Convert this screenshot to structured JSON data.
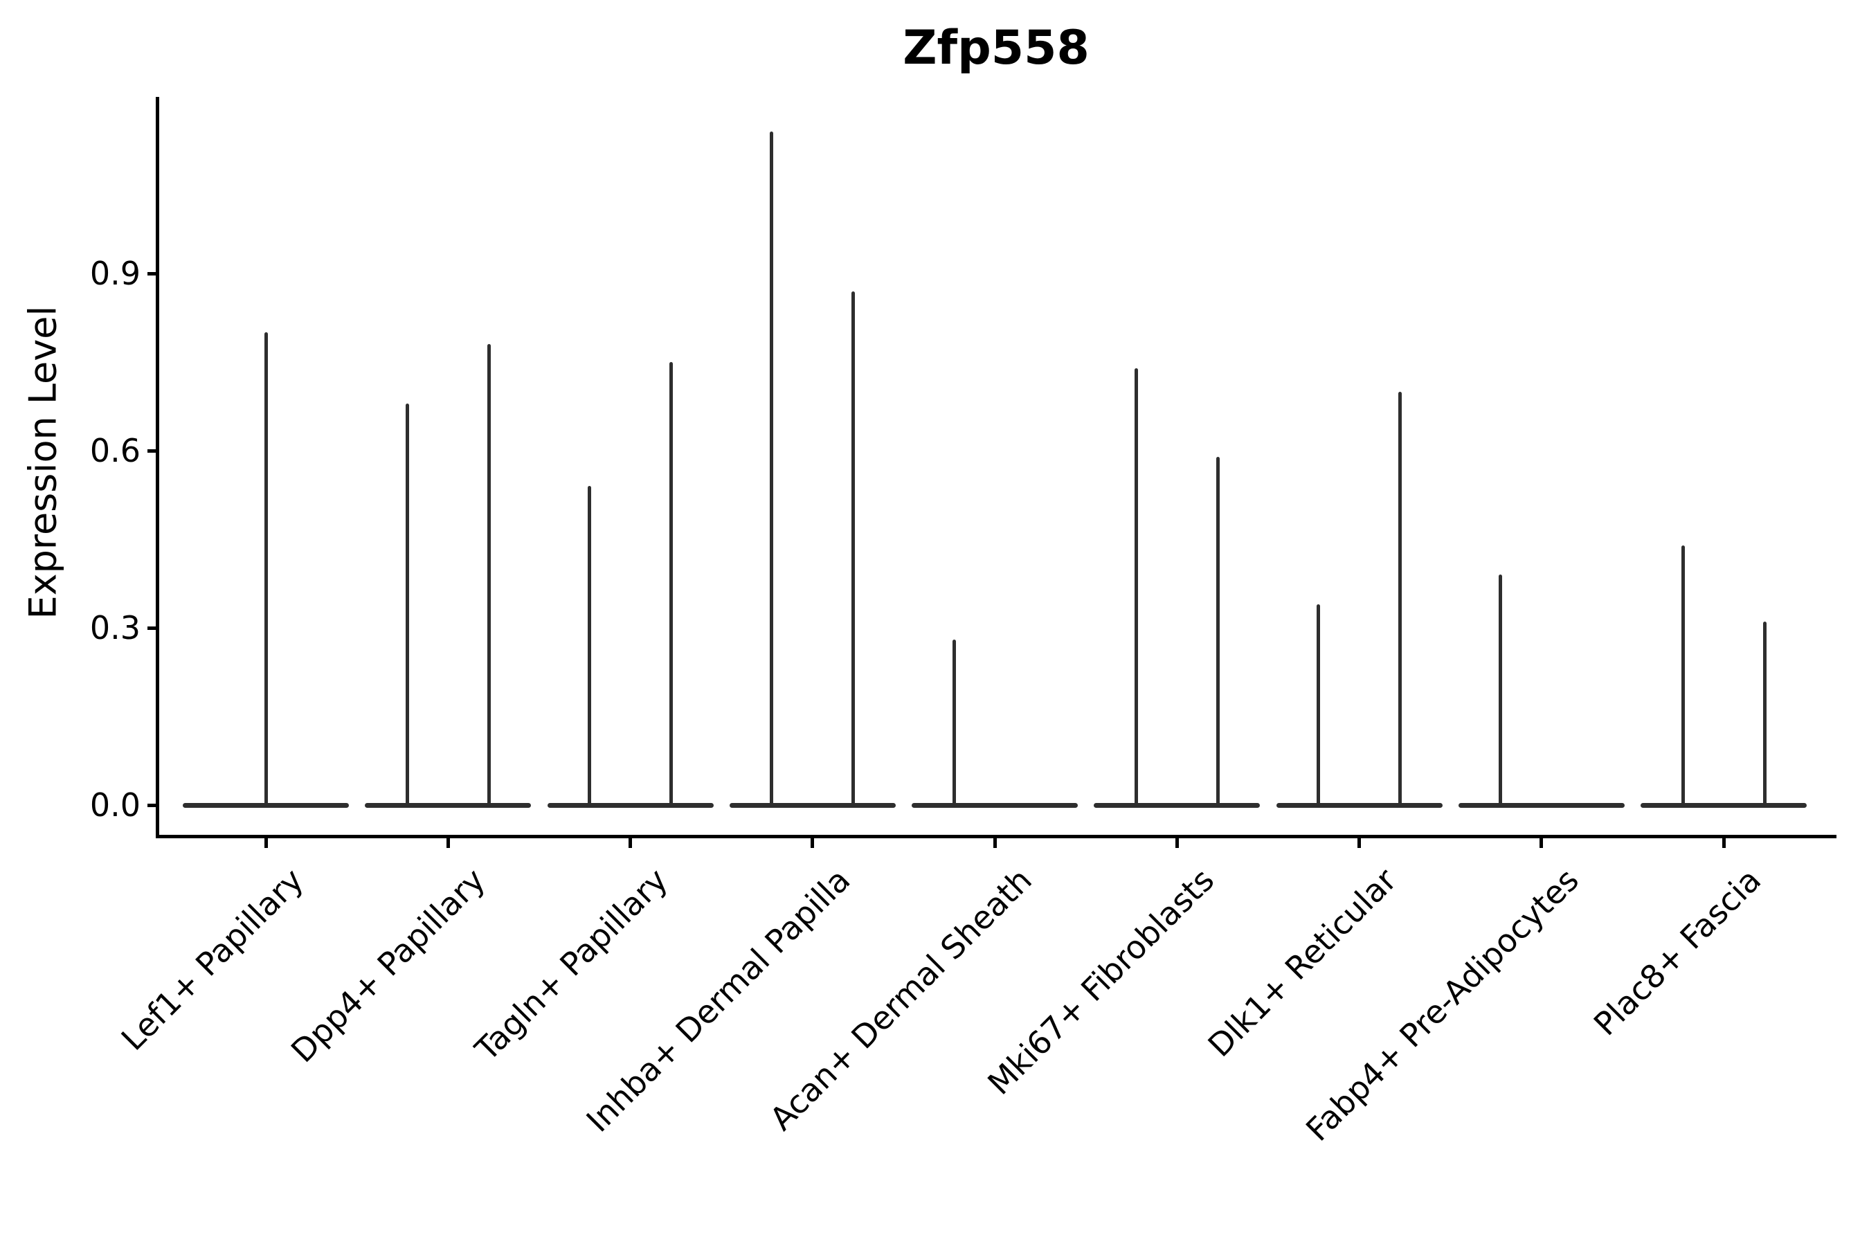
{
  "chart_data": {
    "type": "violin",
    "title": "Zfp558",
    "xlabel": "",
    "ylabel": "Expression Level",
    "ytick_labels": [
      "0.0",
      "0.3",
      "0.6",
      "0.9"
    ],
    "ytick_values": [
      0.0,
      0.3,
      0.6,
      0.9
    ],
    "ylim": [
      -0.055,
      1.2
    ],
    "grid": false,
    "legend": "none",
    "description": "Violin plot of gene expression; each cell-type category shows one or two extremely thin violins: a wide flat base at 0 expression with a thin spike rising to the maximum expression value.",
    "categories": [
      "Lef1+ Papillary",
      "Dpp4+ Papillary",
      "Tagln+ Papillary",
      "Inhba+ Dermal Papilla",
      "Acan+ Dermal Sheath",
      "Mki67+ Fibroblasts",
      "Dlk1+ Reticular",
      "Fabp4+ Pre-Adipocytes",
      "Plac8+ Fascia"
    ],
    "violins": [
      {
        "category": "Lef1+ Papillary",
        "spikes": [
          {
            "position": "center",
            "max": 0.8
          }
        ]
      },
      {
        "category": "Dpp4+ Papillary",
        "spikes": [
          {
            "position": "left",
            "max": 0.68
          },
          {
            "position": "right",
            "max": 0.78
          }
        ]
      },
      {
        "category": "Tagln+ Papillary",
        "spikes": [
          {
            "position": "left",
            "max": 0.54
          },
          {
            "position": "right",
            "max": 0.75
          }
        ]
      },
      {
        "category": "Inhba+ Dermal Papilla",
        "spikes": [
          {
            "position": "left",
            "max": 1.14
          },
          {
            "position": "right",
            "max": 0.87
          }
        ]
      },
      {
        "category": "Acan+ Dermal Sheath",
        "spikes": [
          {
            "position": "left",
            "max": 0.28
          }
        ]
      },
      {
        "category": "Mki67+ Fibroblasts",
        "spikes": [
          {
            "position": "left",
            "max": 0.74
          },
          {
            "position": "right",
            "max": 0.59
          }
        ]
      },
      {
        "category": "Dlk1+ Reticular",
        "spikes": [
          {
            "position": "left",
            "max": 0.34
          },
          {
            "position": "right",
            "max": 0.7
          }
        ]
      },
      {
        "category": "Fabp4+ Pre-Adipocytes",
        "spikes": [
          {
            "position": "left",
            "max": 0.39
          }
        ]
      },
      {
        "category": "Plac8+ Fascia",
        "spikes": [
          {
            "position": "left",
            "max": 0.44
          },
          {
            "position": "right",
            "max": 0.31
          }
        ]
      }
    ],
    "colors": {
      "violin_stroke": "#2e2e2e",
      "axis": "#000000",
      "text": "#000000",
      "background": "#ffffff"
    }
  }
}
